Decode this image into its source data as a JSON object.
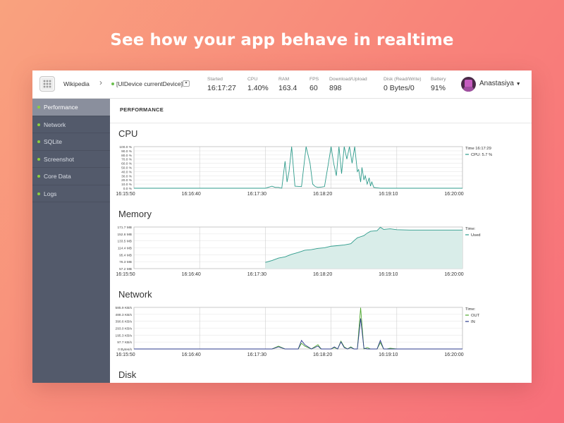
{
  "headline": "See how your app behave in realtime",
  "topbar": {
    "app_name": "Wikipedia",
    "device_name": "[UIDevice currentDevice]",
    "stats": [
      {
        "label": "Started",
        "value": "16:17:27"
      },
      {
        "label": "CPU",
        "value": "1.40%"
      },
      {
        "label": "RAM",
        "value": "163.4"
      },
      {
        "label": "FPS",
        "value": "60"
      },
      {
        "label": "Download/Upload",
        "value": "898"
      },
      {
        "label": "Disk (Read/Write)",
        "value": "0 Bytes/0"
      },
      {
        "label": "Battery",
        "value": "91%"
      }
    ],
    "user_name": "Anastasiya"
  },
  "sidebar": {
    "items": [
      {
        "label": "Performance",
        "active": true
      },
      {
        "label": "Network",
        "active": false
      },
      {
        "label": "SQLite",
        "active": false
      },
      {
        "label": "Screenshot",
        "active": false
      },
      {
        "label": "Core Data",
        "active": false
      },
      {
        "label": "Logs",
        "active": false
      }
    ]
  },
  "main": {
    "title": "PERFORMANCE",
    "sections": {
      "cpu": "CPU",
      "memory": "Memory",
      "network": "Network",
      "disk": "Disk"
    }
  },
  "colors": {
    "teal": "#2e9b8b",
    "teal_fill": "#d9ede9",
    "green": "#4fa82f",
    "navy": "#2d3b8c",
    "sidebar": "#535a6b"
  },
  "chart_data": [
    {
      "type": "line",
      "name": "cpu",
      "x_ticks": [
        "16:15:50",
        "16:16:40",
        "16:17:30",
        "16:18:20",
        "16:19:10",
        "16:20:00"
      ],
      "y_ticks": [
        "100.0 %",
        "90.0 %",
        "80.0 %",
        "70.0 %",
        "60.0 %",
        "50.0 %",
        "40.0 %",
        "30.0 %",
        "20.0 %",
        "10.0 %",
        "0.0 %"
      ],
      "ylim": [
        0,
        100
      ],
      "xlim": [
        0,
        5
      ],
      "legend_title": "Time 16:17:29",
      "series": [
        {
          "name": "CPU",
          "legend": "CPU: 5.7 %",
          "color": "#2e9b8b",
          "x": [
            0,
            2.0,
            2.1,
            2.15,
            2.2,
            2.25,
            2.3,
            2.33,
            2.36,
            2.4,
            2.45,
            2.55,
            2.62,
            2.68,
            2.72,
            2.76,
            2.8,
            2.86,
            2.9,
            2.96,
            3.0,
            3.04,
            3.08,
            3.12,
            3.16,
            3.2,
            3.24,
            3.28,
            3.32,
            3.36,
            3.4,
            3.42,
            3.45,
            3.47,
            3.5,
            3.52,
            3.55,
            3.58,
            3.6,
            3.62,
            3.65,
            3.7,
            3.75,
            5.0
          ],
          "y": [
            0,
            0,
            5,
            2,
            2,
            0,
            65,
            15,
            40,
            100,
            5,
            4,
            100,
            60,
            10,
            4,
            2,
            3,
            4,
            60,
            100,
            60,
            30,
            100,
            35,
            100,
            70,
            100,
            60,
            100,
            40,
            45,
            15,
            50,
            20,
            30,
            10,
            25,
            5,
            15,
            2,
            1,
            0,
            0
          ]
        }
      ]
    },
    {
      "type": "area",
      "name": "memory",
      "x_ticks": [
        "16:15:50",
        "16:16:40",
        "16:17:30",
        "16:18:20",
        "16:19:10",
        "16:20:00"
      ],
      "y_ticks": [
        "171.7 MB",
        "152.6 MB",
        "133.5 MB",
        "114.4 MB",
        "95.4 MB",
        "76.3 MB",
        "57.2 MB"
      ],
      "ylim": [
        38.1,
        171.7
      ],
      "xlim": [
        0,
        5
      ],
      "legend_title": "Time:",
      "series": [
        {
          "name": "Used",
          "color": "#2e9b8b",
          "x": [
            2.0,
            2.1,
            2.2,
            2.3,
            2.4,
            2.5,
            2.6,
            2.7,
            2.8,
            2.9,
            3.0,
            3.1,
            3.2,
            3.3,
            3.35,
            3.4,
            3.5,
            3.55,
            3.6,
            3.7,
            3.75,
            3.8,
            3.9,
            4.0,
            4.2,
            4.5,
            4.8,
            5.0
          ],
          "y": [
            58,
            64,
            72,
            76,
            84,
            90,
            97,
            99,
            103,
            105,
            110,
            112,
            114,
            118,
            128,
            137,
            144,
            152,
            158,
            160,
            171,
            164,
            166,
            163,
            162,
            162,
            162,
            162
          ]
        }
      ]
    },
    {
      "type": "line",
      "name": "network",
      "x_ticks": [
        "16:15:50",
        "16:16:40",
        "16:17:30",
        "16:18:20",
        "16:19:10",
        "16:20:00"
      ],
      "y_ticks": [
        "585.9 KB/s",
        "488.3 KB/s",
        "390.6 KB/s",
        "293.0 KB/s",
        "195.3 KB/s",
        "97.7 KB/s",
        "0 Bytes/s"
      ],
      "ylim": [
        0,
        585.9
      ],
      "xlim": [
        0,
        5
      ],
      "legend_title": "Time:",
      "series": [
        {
          "name": "OUT",
          "color": "#4fa82f",
          "x": [
            0,
            2.1,
            2.2,
            2.3,
            2.35,
            2.5,
            2.55,
            2.6,
            2.7,
            2.8,
            2.85,
            2.9,
            3.0,
            3.05,
            3.1,
            3.15,
            3.2,
            3.25,
            3.3,
            3.35,
            3.4,
            3.45,
            3.5,
            3.55,
            3.6,
            3.7,
            3.75,
            3.8,
            3.85,
            3.9,
            4.0,
            5.0
          ],
          "y": [
            0,
            0,
            40,
            0,
            0,
            0,
            80,
            40,
            0,
            60,
            0,
            0,
            0,
            20,
            0,
            110,
            30,
            0,
            30,
            0,
            0,
            580,
            0,
            20,
            0,
            0,
            90,
            0,
            0,
            10,
            0,
            0
          ]
        },
        {
          "name": "IN",
          "color": "#2d3b8c",
          "x": [
            0,
            2.1,
            2.2,
            2.3,
            2.35,
            2.5,
            2.55,
            2.6,
            2.7,
            2.8,
            2.85,
            2.9,
            3.0,
            3.05,
            3.1,
            3.15,
            3.2,
            3.25,
            3.3,
            3.35,
            3.4,
            3.45,
            3.5,
            3.55,
            3.6,
            3.7,
            3.75,
            3.8,
            3.85,
            3.9,
            4.0,
            5.0
          ],
          "y": [
            0,
            0,
            30,
            0,
            0,
            0,
            120,
            60,
            0,
            40,
            0,
            0,
            0,
            30,
            0,
            100,
            20,
            0,
            20,
            0,
            0,
            430,
            10,
            0,
            0,
            0,
            120,
            0,
            0,
            0,
            0,
            0
          ]
        }
      ]
    }
  ]
}
